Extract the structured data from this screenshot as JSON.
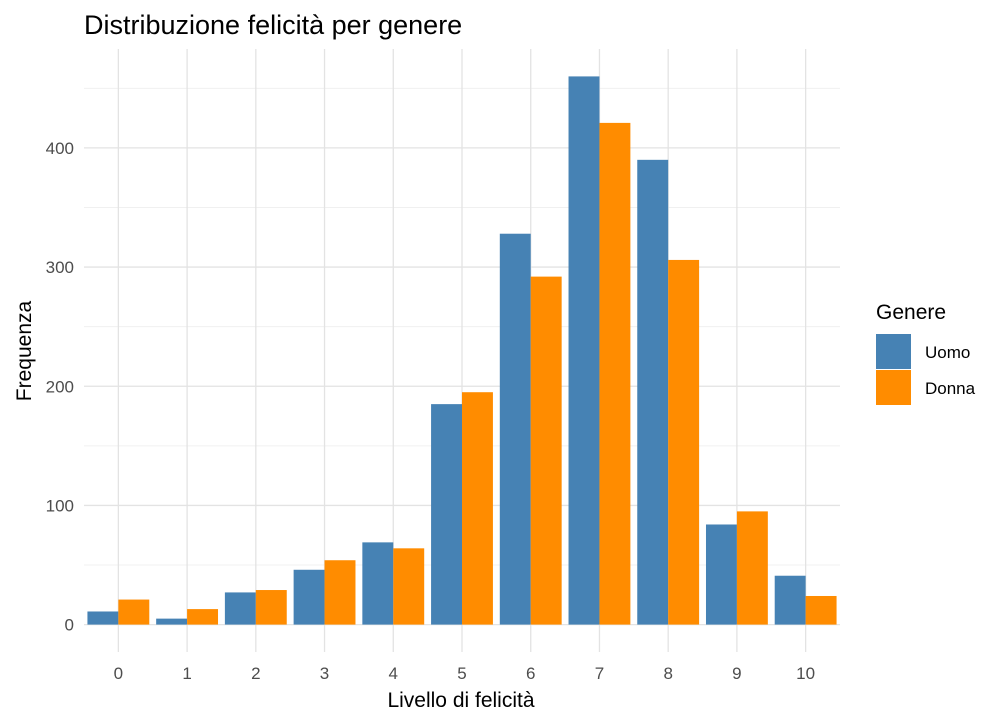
{
  "chart_data": {
    "type": "bar",
    "title": "Distribuzione felicità per genere",
    "xlabel": "Livello di felicità",
    "ylabel": "Frequenza",
    "categories": [
      "0",
      "1",
      "2",
      "3",
      "4",
      "5",
      "6",
      "7",
      "8",
      "9",
      "10"
    ],
    "y_ticks": [
      0,
      100,
      200,
      300,
      400
    ],
    "ylim": [
      -23,
      483
    ],
    "grid": true,
    "legend": {
      "title": "Genere",
      "position": "right"
    },
    "series": [
      {
        "name": "Uomo",
        "color": "#4682B4",
        "values": [
          11,
          5,
          27,
          46,
          69,
          185,
          328,
          460,
          390,
          84,
          41
        ]
      },
      {
        "name": "Donna",
        "color": "#FF8C00",
        "values": [
          21,
          13,
          29,
          54,
          64,
          195,
          292,
          421,
          306,
          95,
          24
        ]
      }
    ]
  }
}
